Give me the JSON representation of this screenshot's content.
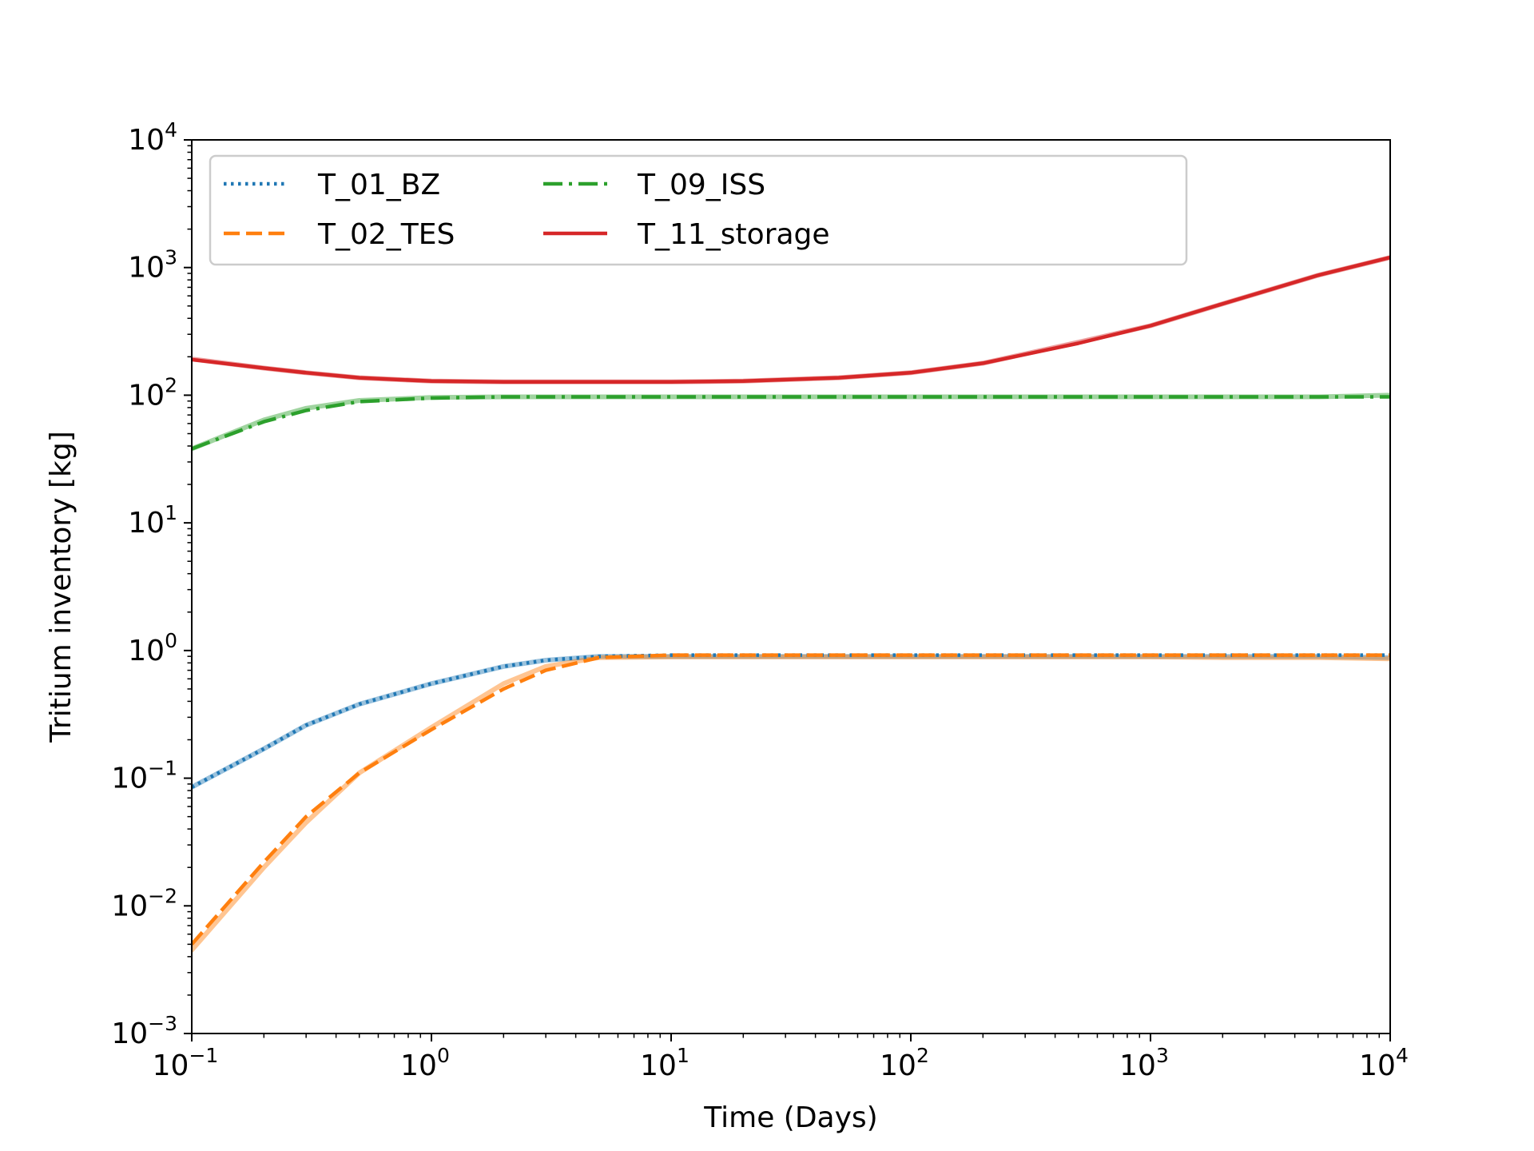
{
  "chart_data": {
    "type": "line",
    "title": "",
    "xlabel": "Time (Days)",
    "ylabel": "Tritium inventory [kg]",
    "xscale": "log",
    "yscale": "log",
    "xlim": [
      0.1,
      10000
    ],
    "ylim": [
      0.001,
      10000
    ],
    "grid": false,
    "legend_position": "top-left",
    "legend_columns": 3,
    "x_tick_labels": [
      {
        "base": "10",
        "exp": "−1",
        "value": 0.1
      },
      {
        "base": "10",
        "exp": "0",
        "value": 1
      },
      {
        "base": "10",
        "exp": "1",
        "value": 10
      },
      {
        "base": "10",
        "exp": "2",
        "value": 100
      },
      {
        "base": "10",
        "exp": "3",
        "value": 1000
      },
      {
        "base": "10",
        "exp": "4",
        "value": 10000
      }
    ],
    "y_tick_labels": [
      {
        "base": "10",
        "exp": "−3",
        "value": 0.001
      },
      {
        "base": "10",
        "exp": "−2",
        "value": 0.01
      },
      {
        "base": "10",
        "exp": "−1",
        "value": 0.1
      },
      {
        "base": "10",
        "exp": "0",
        "value": 1
      },
      {
        "base": "10",
        "exp": "1",
        "value": 10
      },
      {
        "base": "10",
        "exp": "2",
        "value": 100
      },
      {
        "base": "10",
        "exp": "3",
        "value": 1000
      },
      {
        "base": "10",
        "exp": "4",
        "value": 10000
      }
    ],
    "x": [
      0.1,
      0.2,
      0.3,
      0.5,
      1,
      2,
      3,
      5,
      10,
      20,
      50,
      100,
      200,
      500,
      1000,
      2000,
      5000,
      10000
    ],
    "series": [
      {
        "name": "T_01_BZ",
        "color": "#1f77b4",
        "style": "dotted",
        "values": [
          0.085,
          0.17,
          0.26,
          0.38,
          0.55,
          0.75,
          0.84,
          0.9,
          0.92,
          0.92,
          0.92,
          0.92,
          0.92,
          0.92,
          0.92,
          0.92,
          0.92,
          0.92
        ],
        "reference_values": [
          0.085,
          0.17,
          0.26,
          0.38,
          0.55,
          0.75,
          0.84,
          0.9,
          0.9,
          0.9,
          0.9,
          0.9,
          0.9,
          0.9,
          0.9,
          0.9,
          0.9,
          0.88
        ]
      },
      {
        "name": "T_02_TES",
        "color": "#ff7f0e",
        "style": "dashed",
        "values": [
          0.005,
          0.022,
          0.05,
          0.11,
          0.24,
          0.5,
          0.7,
          0.88,
          0.92,
          0.92,
          0.92,
          0.92,
          0.92,
          0.92,
          0.92,
          0.92,
          0.92,
          0.92
        ],
        "reference_values": [
          0.0045,
          0.02,
          0.045,
          0.11,
          0.25,
          0.55,
          0.75,
          0.88,
          0.89,
          0.89,
          0.89,
          0.89,
          0.89,
          0.89,
          0.89,
          0.88,
          0.88,
          0.86
        ]
      },
      {
        "name": "T_09_ISS",
        "color": "#2ca02c",
        "style": "dashdot",
        "values": [
          38,
          62,
          76,
          89,
          95,
          97,
          97,
          97,
          97,
          97,
          97,
          97,
          97,
          97,
          97,
          97,
          97,
          97
        ],
        "reference_values": [
          38,
          64,
          79,
          91,
          96,
          97,
          97,
          97,
          97,
          97,
          97,
          97,
          97,
          97,
          97,
          97,
          97,
          100
        ]
      },
      {
        "name": "T_11_storage",
        "color": "#d62728",
        "style": "solid",
        "values": [
          190,
          163,
          150,
          137,
          129,
          127,
          127,
          127,
          127,
          129,
          137,
          150,
          178,
          255,
          350,
          520,
          870,
          1200
        ],
        "reference_values": [
          192,
          163,
          150,
          137,
          129,
          127,
          127,
          127,
          127,
          129,
          137,
          150,
          178,
          260,
          350,
          520,
          870,
          1200
        ]
      }
    ]
  }
}
